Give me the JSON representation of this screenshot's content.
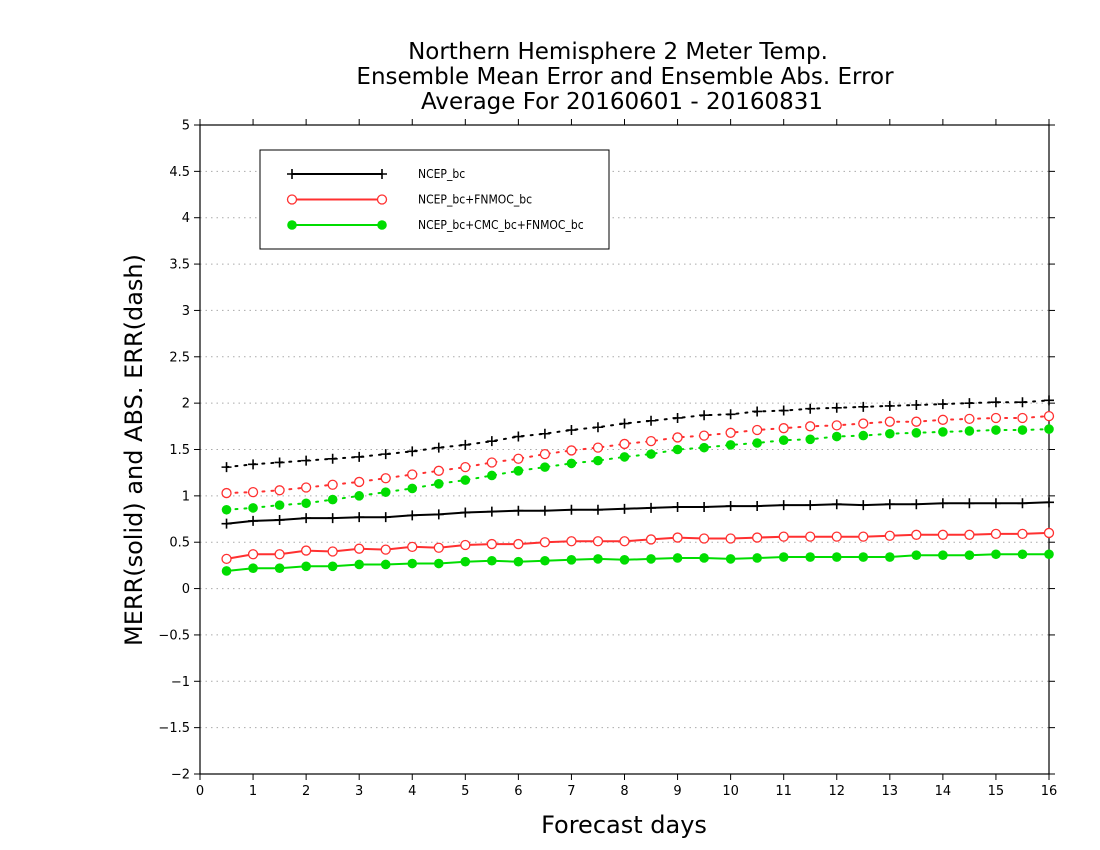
{
  "chart_data": {
    "type": "line",
    "title_lines": [
      "Northern Hemisphere 2 Meter Temp.",
      "Ensemble Mean Error and Ensemble Abs. Error",
      "Average For 20160601 - 20160831"
    ],
    "xlabel": "Forecast days",
    "ylabel": "MERR(solid) and ABS. ERR(dash)",
    "xlim": [
      0,
      16
    ],
    "ylim": [
      -2,
      5
    ],
    "x_ticks": [
      0,
      1,
      2,
      3,
      4,
      5,
      6,
      7,
      8,
      9,
      10,
      11,
      12,
      13,
      14,
      15,
      16
    ],
    "y_ticks": [
      -2,
      -1.5,
      -1,
      -0.5,
      0,
      0.5,
      1,
      1.5,
      2,
      2.5,
      3,
      3.5,
      4,
      4.5,
      5
    ],
    "grid": "horizontal dotted",
    "legend_position": "top-left",
    "x": [
      0.5,
      1,
      1.5,
      2,
      2.5,
      3,
      3.5,
      4,
      4.5,
      5,
      5.5,
      6,
      6.5,
      7,
      7.5,
      8,
      8.5,
      9,
      9.5,
      10,
      10.5,
      11,
      11.5,
      12,
      12.5,
      13,
      13.5,
      14,
      14.5,
      15,
      15.5,
      16
    ],
    "series": [
      {
        "name": "NCEP_bc",
        "color": "#000000",
        "marker": "plus",
        "merr": [
          0.7,
          0.73,
          0.74,
          0.76,
          0.76,
          0.77,
          0.77,
          0.79,
          0.8,
          0.82,
          0.83,
          0.84,
          0.84,
          0.85,
          0.85,
          0.86,
          0.87,
          0.88,
          0.88,
          0.89,
          0.89,
          0.9,
          0.9,
          0.91,
          0.9,
          0.91,
          0.91,
          0.92,
          0.92,
          0.92,
          0.92,
          0.93
        ],
        "abs_err": [
          1.31,
          1.34,
          1.36,
          1.38,
          1.4,
          1.42,
          1.45,
          1.48,
          1.52,
          1.55,
          1.59,
          1.64,
          1.67,
          1.71,
          1.74,
          1.78,
          1.81,
          1.84,
          1.87,
          1.88,
          1.91,
          1.92,
          1.94,
          1.95,
          1.96,
          1.97,
          1.98,
          1.99,
          2.0,
          2.01,
          2.01,
          2.03
        ]
      },
      {
        "name": "NCEP_bc+FNMOC_bc",
        "color": "#ff3030",
        "marker": "open-circle",
        "merr": [
          0.32,
          0.37,
          0.37,
          0.41,
          0.4,
          0.43,
          0.42,
          0.45,
          0.44,
          0.47,
          0.48,
          0.48,
          0.5,
          0.51,
          0.51,
          0.51,
          0.53,
          0.55,
          0.54,
          0.54,
          0.55,
          0.56,
          0.56,
          0.56,
          0.56,
          0.57,
          0.58,
          0.58,
          0.58,
          0.59,
          0.59,
          0.6
        ],
        "abs_err": [
          1.03,
          1.04,
          1.06,
          1.09,
          1.12,
          1.15,
          1.19,
          1.23,
          1.27,
          1.31,
          1.36,
          1.4,
          1.45,
          1.49,
          1.52,
          1.56,
          1.59,
          1.63,
          1.65,
          1.68,
          1.71,
          1.73,
          1.75,
          1.76,
          1.78,
          1.8,
          1.8,
          1.82,
          1.83,
          1.84,
          1.84,
          1.86
        ]
      },
      {
        "name": "NCEP_bc+CMC_bc+FNMOC_bc",
        "color": "#00dd00",
        "marker": "filled-circle",
        "merr": [
          0.19,
          0.22,
          0.22,
          0.24,
          0.24,
          0.26,
          0.26,
          0.27,
          0.27,
          0.29,
          0.3,
          0.29,
          0.3,
          0.31,
          0.32,
          0.31,
          0.32,
          0.33,
          0.33,
          0.32,
          0.33,
          0.34,
          0.34,
          0.34,
          0.34,
          0.34,
          0.36,
          0.36,
          0.36,
          0.37,
          0.37,
          0.37
        ],
        "abs_err": [
          0.85,
          0.87,
          0.9,
          0.92,
          0.96,
          1.0,
          1.04,
          1.08,
          1.13,
          1.17,
          1.22,
          1.27,
          1.31,
          1.35,
          1.38,
          1.42,
          1.45,
          1.5,
          1.52,
          1.55,
          1.57,
          1.6,
          1.61,
          1.64,
          1.65,
          1.67,
          1.68,
          1.69,
          1.7,
          1.71,
          1.71,
          1.72
        ]
      }
    ]
  }
}
